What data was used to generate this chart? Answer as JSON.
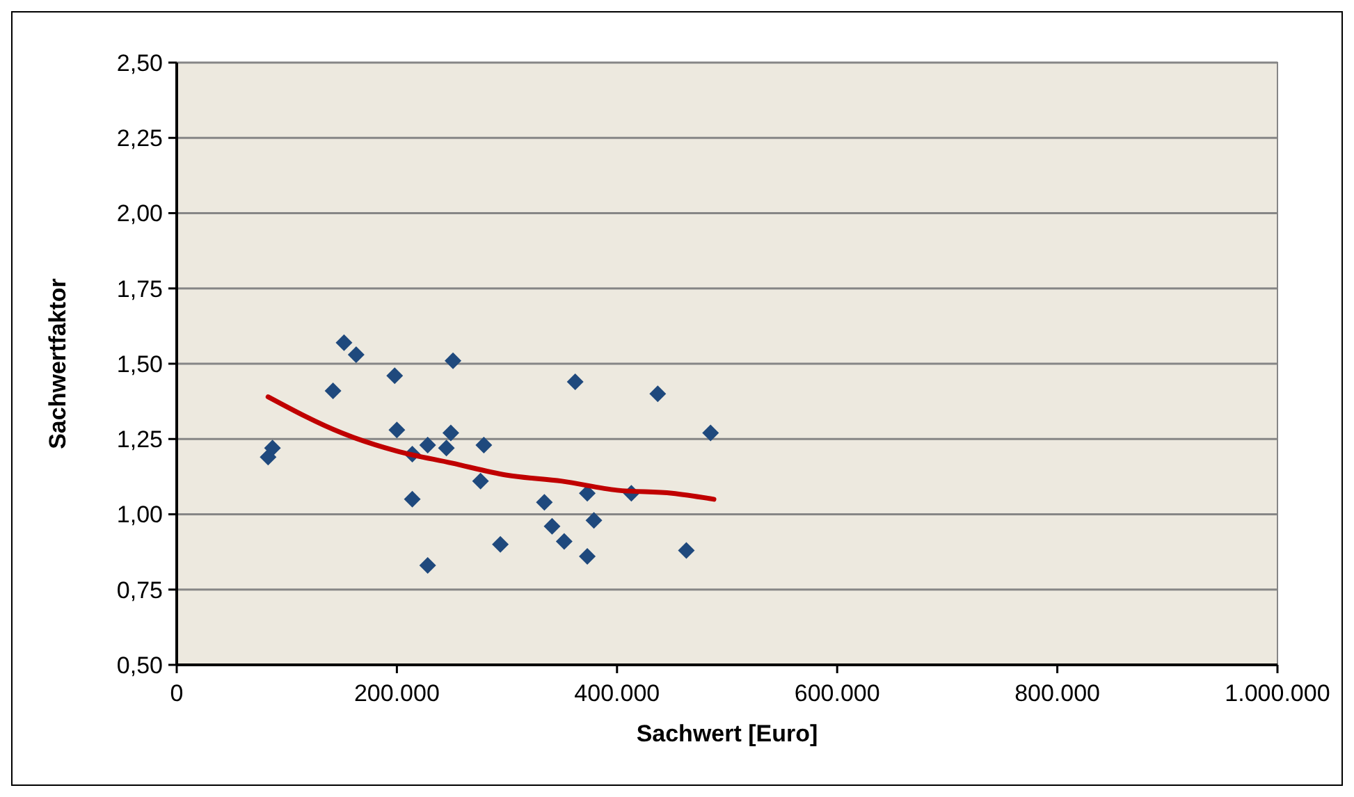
{
  "chart_data": {
    "type": "scatter",
    "xlabel": "Sachwert [Euro]",
    "ylabel": "Sachwertfaktor",
    "xlim": [
      0,
      1000000
    ],
    "xticks": [
      0,
      {
        "value": 200000,
        "label": "200.000"
      },
      {
        "value": 400000,
        "label": "400.000"
      },
      {
        "value": 600000,
        "label": "600.000"
      },
      {
        "value": 800000,
        "label": "800.000"
      },
      {
        "value": 1000000,
        "label": "1.000.000"
      }
    ],
    "ylim": [
      0.5,
      2.5
    ],
    "yticks": [
      {
        "value": 0.5,
        "label": "0,50"
      },
      {
        "value": 0.75,
        "label": "0,75"
      },
      {
        "value": 1.0,
        "label": "1,00"
      },
      {
        "value": 1.25,
        "label": "1,25"
      },
      {
        "value": 1.5,
        "label": "1,50"
      },
      {
        "value": 1.75,
        "label": "1,75"
      },
      {
        "value": 2.0,
        "label": "2,00"
      },
      {
        "value": 2.25,
        "label": "2,25"
      },
      {
        "value": 2.5,
        "label": "2,50"
      }
    ],
    "grid": "y",
    "series": [
      {
        "color": "#1f497d",
        "marker": "diamond",
        "x": [
          83000,
          87000,
          142000,
          152000,
          163000,
          198000,
          200000,
          214000,
          214000,
          228000,
          228000,
          245000,
          249000,
          251000,
          279000,
          276000,
          294000,
          334000,
          341000,
          352000,
          362000,
          373000,
          379000,
          373000,
          413000,
          437000,
          463000,
          485000
        ],
        "values": [
          1.19,
          1.22,
          1.41,
          1.57,
          1.53,
          1.46,
          1.28,
          1.2,
          1.05,
          0.83,
          1.23,
          1.22,
          1.27,
          1.51,
          1.23,
          1.11,
          0.9,
          1.04,
          0.96,
          0.91,
          1.44,
          1.07,
          0.98,
          0.86,
          1.07,
          1.4,
          0.88,
          1.27
        ]
      },
      {
        "type": "line",
        "color": "#c00000",
        "marker": "none",
        "line_style": "solid",
        "x": [
          83000,
          150000,
          200000,
          250000,
          300000,
          350000,
          400000,
          450000,
          488000
        ],
        "values": [
          1.39,
          1.27,
          1.21,
          1.17,
          1.13,
          1.11,
          1.08,
          1.07,
          1.05
        ]
      }
    ]
  }
}
